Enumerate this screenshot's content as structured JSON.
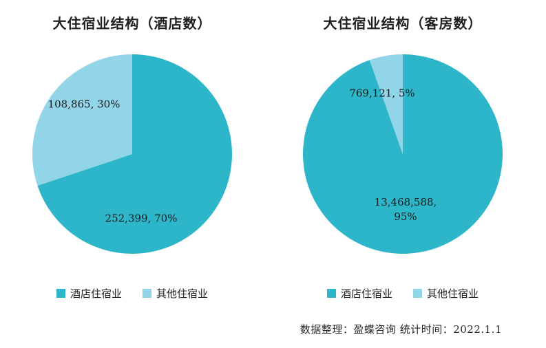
{
  "page": {
    "footer": "数据整理：盈蝶咨询  统计时间：2022.1.1"
  },
  "chart_data": [
    {
      "type": "pie",
      "title": "大住宿业结构（酒店数）",
      "labels": [
        "酒店住宿业",
        "其他住宿业"
      ],
      "values": [
        252399,
        108865
      ],
      "percents": [
        70,
        30
      ],
      "data_labels": [
        "252,399, 70%",
        "108,865, 30%"
      ],
      "colors": [
        "#2db5c9",
        "#92d4e8"
      ],
      "start_angle_deg": 0,
      "direction": "clockwise",
      "legend_position": "bottom"
    },
    {
      "type": "pie",
      "title": "大住宿业结构（客房数）",
      "labels": [
        "酒店住宿业",
        "其他住宿业"
      ],
      "values": [
        13468588,
        769121
      ],
      "percents": [
        95,
        5
      ],
      "data_labels": [
        "13,468,588, 95%",
        "769,121, 5%"
      ],
      "colors": [
        "#2db5c9",
        "#92d4e8"
      ],
      "start_angle_deg": 0,
      "direction": "clockwise",
      "legend_position": "bottom"
    }
  ]
}
